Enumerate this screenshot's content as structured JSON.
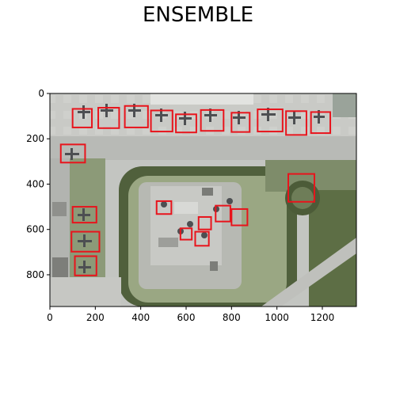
{
  "figure": {
    "title": "ENSEMBLE"
  },
  "chart_data": {
    "type": "image",
    "title": "ENSEMBLE",
    "xlim": [
      0,
      1350
    ],
    "ylim": [
      940,
      0
    ],
    "x_ticks": [
      0,
      200,
      400,
      600,
      800,
      1000,
      1200
    ],
    "y_ticks": [
      0,
      200,
      400,
      600,
      800
    ],
    "box_color": "#e8141c",
    "detections": [
      {
        "x0": 100,
        "y0": 68,
        "x1": 185,
        "y1": 150
      },
      {
        "x0": 213,
        "y0": 63,
        "x1": 305,
        "y1": 153
      },
      {
        "x0": 330,
        "y0": 55,
        "x1": 432,
        "y1": 150
      },
      {
        "x0": 445,
        "y0": 75,
        "x1": 540,
        "y1": 168
      },
      {
        "x0": 555,
        "y0": 92,
        "x1": 645,
        "y1": 172
      },
      {
        "x0": 665,
        "y0": 73,
        "x1": 765,
        "y1": 165
      },
      {
        "x0": 800,
        "y0": 85,
        "x1": 880,
        "y1": 170
      },
      {
        "x0": 915,
        "y0": 70,
        "x1": 1025,
        "y1": 168
      },
      {
        "x0": 1040,
        "y0": 78,
        "x1": 1130,
        "y1": 183
      },
      {
        "x0": 1150,
        "y0": 82,
        "x1": 1235,
        "y1": 175
      },
      {
        "x0": 48,
        "y0": 225,
        "x1": 155,
        "y1": 305
      },
      {
        "x0": 1050,
        "y0": 355,
        "x1": 1165,
        "y1": 478
      },
      {
        "x0": 470,
        "y0": 475,
        "x1": 535,
        "y1": 532
      },
      {
        "x0": 100,
        "y0": 500,
        "x1": 205,
        "y1": 570
      },
      {
        "x0": 730,
        "y0": 495,
        "x1": 795,
        "y1": 565
      },
      {
        "x0": 800,
        "y0": 510,
        "x1": 870,
        "y1": 582
      },
      {
        "x0": 655,
        "y0": 545,
        "x1": 710,
        "y1": 600
      },
      {
        "x0": 575,
        "y0": 595,
        "x1": 625,
        "y1": 645
      },
      {
        "x0": 640,
        "y0": 610,
        "x1": 700,
        "y1": 672
      },
      {
        "x0": 95,
        "y0": 610,
        "x1": 218,
        "y1": 698
      },
      {
        "x0": 110,
        "y0": 718,
        "x1": 205,
        "y1": 803
      }
    ]
  }
}
